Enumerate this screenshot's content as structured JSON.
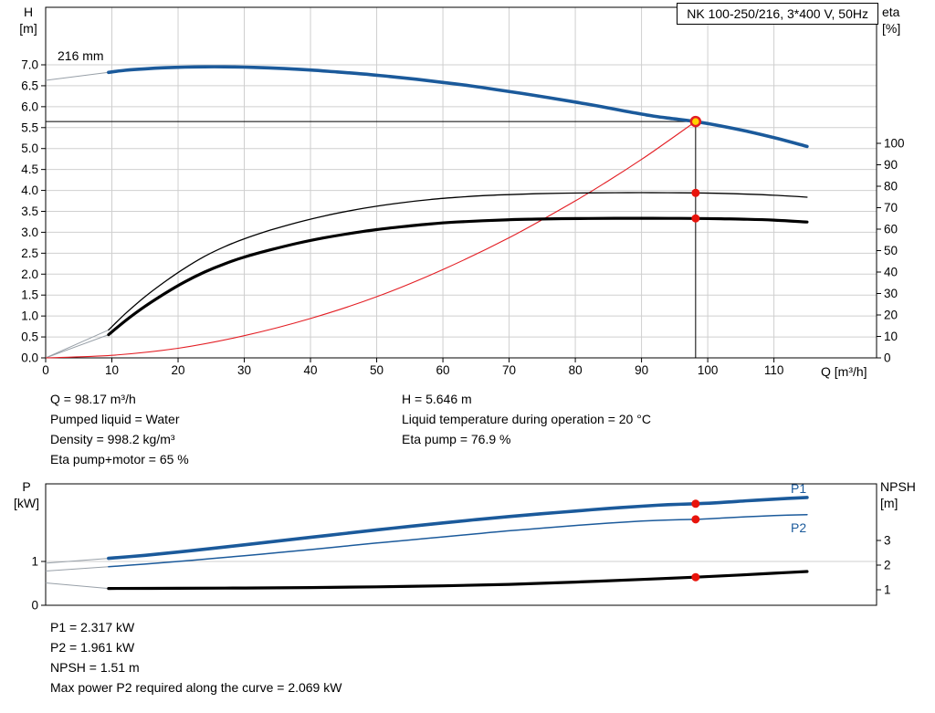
{
  "labels": {
    "h_axis_line1": "H",
    "h_axis_line2": "[m]",
    "eta_axis_line1": "eta",
    "eta_axis_line2": "[%]",
    "q_axis": "Q [m³/h]",
    "p_axis_line1": "P",
    "p_axis_line2": "[kW]",
    "npsh_axis_line1": "NPSH",
    "npsh_axis_line2": "[m]",
    "impeller": "216 mm",
    "p1": "P1",
    "p2": "P2"
  },
  "info_top_left": [
    "Q = 98.17 m³/h",
    "Pumped liquid = Water",
    "Density = 998.2 kg/m³",
    "Eta pump+motor = 65 %"
  ],
  "info_top_right": [
    "H = 5.646 m",
    "Liquid temperature during operation = 20 °C",
    "Eta pump = 76.9 %"
  ],
  "info_bottom": [
    "P1 = 2.317 kW",
    "P2 = 1.961 kW",
    "NPSH = 1.51 m",
    "Max power P2 required along the curve = 2.069 kW"
  ],
  "colors": {
    "curve_blue": "#1b5a9b",
    "curve_black": "#000000",
    "system_red": "#e31e24",
    "dot_red": "#e8140c",
    "duty_fill": "#ffd400",
    "grid": "#cfcfcf",
    "connector_gray": "#98a0a8",
    "axis": "#000000",
    "label_blue": "#1b5a9b"
  },
  "chart_data": [
    {
      "type": "line",
      "title": "NK 100-250/216, 3*400 V, 50Hz",
      "x_label": "Q [m³/h]",
      "x_ticks": [
        0,
        10,
        20,
        30,
        40,
        50,
        60,
        70,
        80,
        90,
        100,
        110
      ],
      "x_range": [
        0,
        125.5
      ],
      "y_left_label": "H [m]",
      "y_left_ticks": [
        0,
        0.5,
        1,
        1.5,
        2,
        2.5,
        3,
        3.5,
        4,
        4.5,
        5,
        5.5,
        6,
        6.5,
        7
      ],
      "y_left_range": [
        0,
        8.4
      ],
      "y_right_label": "eta [%]",
      "y_right_ticks": [
        0,
        10,
        20,
        30,
        40,
        50,
        60,
        70,
        80,
        90,
        100
      ],
      "y_right_range": [
        0,
        163
      ],
      "grid": true,
      "impeller_label": "216 mm",
      "duty_point": {
        "Q": 98.17,
        "H": 5.646,
        "eta_pump": 76.9,
        "eta_pump_motor": 65
      },
      "series": [
        {
          "name": "system-curve",
          "axis": "left",
          "style": "thin-red",
          "points": [
            [
              0,
              0
            ],
            [
              10,
              0.06
            ],
            [
              20,
              0.23
            ],
            [
              30,
              0.53
            ],
            [
              40,
              0.94
            ],
            [
              50,
              1.46
            ],
            [
              60,
              2.11
            ],
            [
              70,
              2.87
            ],
            [
              80,
              3.75
            ],
            [
              85,
              4.23
            ],
            [
              90,
              4.74
            ],
            [
              94,
              5.18
            ],
            [
              98.17,
              5.646
            ]
          ]
        },
        {
          "name": "eta-pump",
          "axis": "right",
          "style": "thin-black",
          "points": [
            [
              9.5,
              13
            ],
            [
              12,
              20.5
            ],
            [
              15,
              28.5
            ],
            [
              18,
              35.5
            ],
            [
              21,
              41.8
            ],
            [
              24,
              47.3
            ],
            [
              27,
              51.8
            ],
            [
              30,
              55.5
            ],
            [
              34,
              59.6
            ],
            [
              38,
              63.1
            ],
            [
              42,
              66.1
            ],
            [
              46,
              68.6
            ],
            [
              50,
              70.7
            ],
            [
              54,
              72.4
            ],
            [
              58,
              73.8
            ],
            [
              62,
              74.8
            ],
            [
              66,
              75.6
            ],
            [
              70,
              76.1
            ],
            [
              74,
              76.5
            ],
            [
              78,
              76.75
            ],
            [
              82,
              76.9
            ],
            [
              86,
              76.98
            ],
            [
              90,
              77.0
            ],
            [
              94,
              76.97
            ],
            [
              98.17,
              76.9
            ],
            [
              102,
              76.7
            ],
            [
              106,
              76.3
            ],
            [
              110,
              75.8
            ],
            [
              115,
              74.9
            ]
          ]
        },
        {
          "name": "eta-pump-motor",
          "axis": "right",
          "style": "thick-black",
          "points": [
            [
              9.5,
              10.8
            ],
            [
              12,
              17.2
            ],
            [
              15,
              24
            ],
            [
              18,
              30
            ],
            [
              21,
              35.4
            ],
            [
              24,
              40
            ],
            [
              27,
              43.8
            ],
            [
              30,
              47
            ],
            [
              34,
              50.4
            ],
            [
              38,
              53.4
            ],
            [
              42,
              55.9
            ],
            [
              46,
              58
            ],
            [
              50,
              59.8
            ],
            [
              54,
              61.2
            ],
            [
              58,
              62.4
            ],
            [
              62,
              63.3
            ],
            [
              66,
              63.9
            ],
            [
              70,
              64.4
            ],
            [
              74,
              64.7
            ],
            [
              78,
              64.9
            ],
            [
              82,
              65.0
            ],
            [
              86,
              65.05
            ],
            [
              90,
              65.05
            ],
            [
              94,
              65.02
            ],
            [
              98.17,
              65.0
            ],
            [
              102,
              64.85
            ],
            [
              106,
              64.6
            ],
            [
              110,
              64.2
            ],
            [
              115,
              63.3
            ]
          ]
        },
        {
          "name": "head-216mm",
          "axis": "left",
          "style": "thick-blue",
          "points": [
            [
              9.5,
              6.82
            ],
            [
              12,
              6.87
            ],
            [
              15,
              6.905
            ],
            [
              18,
              6.93
            ],
            [
              21,
              6.945
            ],
            [
              24,
              6.952
            ],
            [
              27,
              6.952
            ],
            [
              30,
              6.945
            ],
            [
              33,
              6.93
            ],
            [
              36,
              6.91
            ],
            [
              40,
              6.875
            ],
            [
              44,
              6.83
            ],
            [
              48,
              6.78
            ],
            [
              52,
              6.72
            ],
            [
              56,
              6.655
            ],
            [
              60,
              6.58
            ],
            [
              64,
              6.5
            ],
            [
              68,
              6.41
            ],
            [
              72,
              6.315
            ],
            [
              76,
              6.215
            ],
            [
              80,
              6.11
            ],
            [
              84,
              6.0
            ],
            [
              88,
              5.88
            ],
            [
              92,
              5.77
            ],
            [
              95,
              5.71
            ],
            [
              98.17,
              5.646
            ],
            [
              102,
              5.54
            ],
            [
              106,
              5.41
            ],
            [
              110,
              5.26
            ],
            [
              115,
              5.05
            ]
          ]
        }
      ],
      "connectors": [
        {
          "axis": "left",
          "points": [
            [
              0,
              6.63
            ],
            [
              9.5,
              6.82
            ]
          ]
        },
        {
          "axis": "right",
          "points": [
            [
              0,
              0
            ],
            [
              9.5,
              13
            ]
          ]
        },
        {
          "axis": "right",
          "points": [
            [
              0,
              0
            ],
            [
              9.5,
              10.8
            ]
          ]
        }
      ]
    },
    {
      "type": "line",
      "x_ticks": [],
      "x_range": [
        0,
        125.5
      ],
      "y_left_label": "P [kW]",
      "y_left_ticks": [
        0,
        1
      ],
      "y_left_range": [
        0,
        2.77
      ],
      "y_right_label": "NPSH [m]",
      "y_right_ticks": [
        1,
        2,
        3
      ],
      "y_right_range": [
        0,
        5.3
      ],
      "grid": true,
      "duty_point": {
        "Q": 98.17,
        "P1": 2.317,
        "P2": 1.961,
        "NPSH": 1.51
      },
      "series": [
        {
          "name": "npsh",
          "axis": "right",
          "style": "thick-black",
          "points": [
            [
              9.5,
              1.05
            ],
            [
              20,
              1.06
            ],
            [
              30,
              1.07
            ],
            [
              40,
              1.09
            ],
            [
              50,
              1.12
            ],
            [
              60,
              1.16
            ],
            [
              70,
              1.22
            ],
            [
              80,
              1.31
            ],
            [
              90,
              1.42
            ],
            [
              98.17,
              1.51
            ],
            [
              105,
              1.6
            ],
            [
              110,
              1.67
            ],
            [
              115,
              1.74
            ]
          ]
        },
        {
          "name": "p2",
          "axis": "left",
          "style": "thin-blue",
          "points": [
            [
              9.5,
              0.88
            ],
            [
              15,
              0.94
            ],
            [
              20,
              1.0
            ],
            [
              25,
              1.065
            ],
            [
              30,
              1.13
            ],
            [
              35,
              1.2
            ],
            [
              40,
              1.27
            ],
            [
              45,
              1.345
            ],
            [
              50,
              1.42
            ],
            [
              55,
              1.49
            ],
            [
              60,
              1.56
            ],
            [
              65,
              1.63
            ],
            [
              70,
              1.7
            ],
            [
              75,
              1.76
            ],
            [
              80,
              1.82
            ],
            [
              85,
              1.875
            ],
            [
              90,
              1.92
            ],
            [
              94,
              1.945
            ],
            [
              98.17,
              1.961
            ],
            [
              102,
              1.99
            ],
            [
              106,
              2.02
            ],
            [
              110,
              2.045
            ],
            [
              115,
              2.069
            ]
          ]
        },
        {
          "name": "p1",
          "axis": "left",
          "style": "thick-blue",
          "points": [
            [
              9.5,
              1.07
            ],
            [
              15,
              1.14
            ],
            [
              20,
              1.215
            ],
            [
              25,
              1.295
            ],
            [
              30,
              1.38
            ],
            [
              35,
              1.465
            ],
            [
              40,
              1.55
            ],
            [
              45,
              1.635
            ],
            [
              50,
              1.72
            ],
            [
              55,
              1.8
            ],
            [
              60,
              1.88
            ],
            [
              65,
              1.955
            ],
            [
              70,
              2.025
            ],
            [
              75,
              2.09
            ],
            [
              80,
              2.15
            ],
            [
              85,
              2.21
            ],
            [
              90,
              2.26
            ],
            [
              94,
              2.295
            ],
            [
              98.17,
              2.317
            ],
            [
              102,
              2.345
            ],
            [
              106,
              2.385
            ],
            [
              110,
              2.42
            ],
            [
              115,
              2.46
            ]
          ]
        }
      ],
      "connectors": [
        {
          "axis": "left",
          "points": [
            [
              0,
              0.96
            ],
            [
              9.5,
              1.07
            ]
          ]
        },
        {
          "axis": "left",
          "points": [
            [
              0,
              0.78
            ],
            [
              9.5,
              0.88
            ]
          ]
        },
        {
          "axis": "right",
          "points": [
            [
              0,
              1.28
            ],
            [
              9.5,
              1.05
            ]
          ]
        }
      ]
    }
  ]
}
